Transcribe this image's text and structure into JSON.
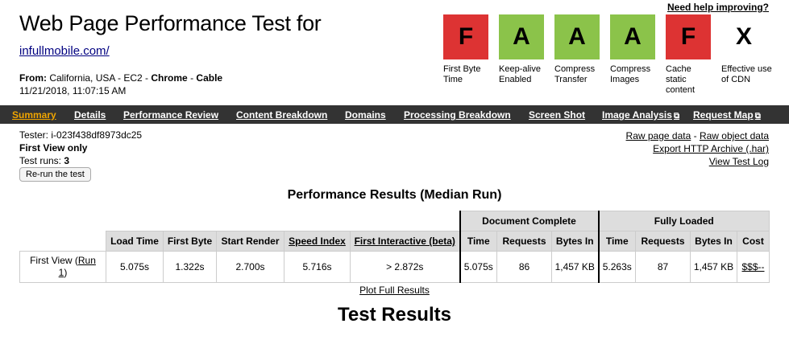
{
  "header": {
    "help_link": "Need help improving?",
    "title": "Web Page Performance Test for",
    "url": "infullmobile.com/",
    "from_label": "From:",
    "from_location": "California, USA - EC2 - ",
    "browser": "Chrome",
    "connection": "Cable",
    "datetime": "11/21/2018, 11:07:15 AM"
  },
  "grades": [
    {
      "letter": "F",
      "label": "First Byte Time",
      "color": "#dd3333"
    },
    {
      "letter": "A",
      "label": "Keep-alive Enabled",
      "color": "#8bc34a"
    },
    {
      "letter": "A",
      "label": "Compress Transfer",
      "color": "#8bc34a"
    },
    {
      "letter": "A",
      "label": "Compress Images",
      "color": "#8bc34a"
    },
    {
      "letter": "F",
      "label": "Cache static content",
      "color": "#dd3333"
    },
    {
      "letter": "X",
      "label": "Effective use of CDN",
      "color": "#ffffff"
    }
  ],
  "nav": {
    "summary": "Summary",
    "details": "Details",
    "performance_review": "Performance Review",
    "content_breakdown": "Content Breakdown",
    "domains": "Domains",
    "processing_breakdown": "Processing Breakdown",
    "screen_shot": "Screen Shot",
    "image_analysis": "Image Analysis",
    "request_map": "Request Map",
    "external_icon": "⧉"
  },
  "info": {
    "tester": "Tester: i-023f438df8973dc25",
    "first_view_only": "First View only",
    "test_runs_label": "Test runs: ",
    "test_runs_value": "3",
    "rerun_button": "Re-run the test"
  },
  "links": {
    "raw_page_data": "Raw page data",
    "separator": " - ",
    "raw_object_data": "Raw object data",
    "export_har": "Export HTTP Archive (.har)",
    "view_test_log": "View Test Log"
  },
  "performance": {
    "title": "Performance Results (Median Run)",
    "group_document_complete": "Document Complete",
    "group_fully_loaded": "Fully Loaded",
    "headers": {
      "load_time": "Load Time",
      "first_byte": "First Byte",
      "start_render": "Start Render",
      "speed_index": "Speed Index",
      "first_interactive": "First Interactive (beta)",
      "dc_time": "Time",
      "dc_requests": "Requests",
      "dc_bytes": "Bytes In",
      "fl_time": "Time",
      "fl_requests": "Requests",
      "fl_bytes": "Bytes In",
      "cost": "Cost"
    },
    "row": {
      "label": "First View (",
      "run_link_a": "Run",
      "run_link_b": "1",
      "close_paren": ")",
      "load_time": "5.075s",
      "first_byte": "1.322s",
      "start_render": "2.700s",
      "speed_index": "5.716s",
      "first_interactive": "> 2.872s",
      "dc_time": "5.075s",
      "dc_requests": "86",
      "dc_bytes": "1,457 KB",
      "fl_time": "5.263s",
      "fl_requests": "87",
      "fl_bytes": "1,457 KB",
      "cost": "$$$--"
    },
    "plot_link": "Plot Full Results"
  },
  "test_results_heading": "Test Results"
}
